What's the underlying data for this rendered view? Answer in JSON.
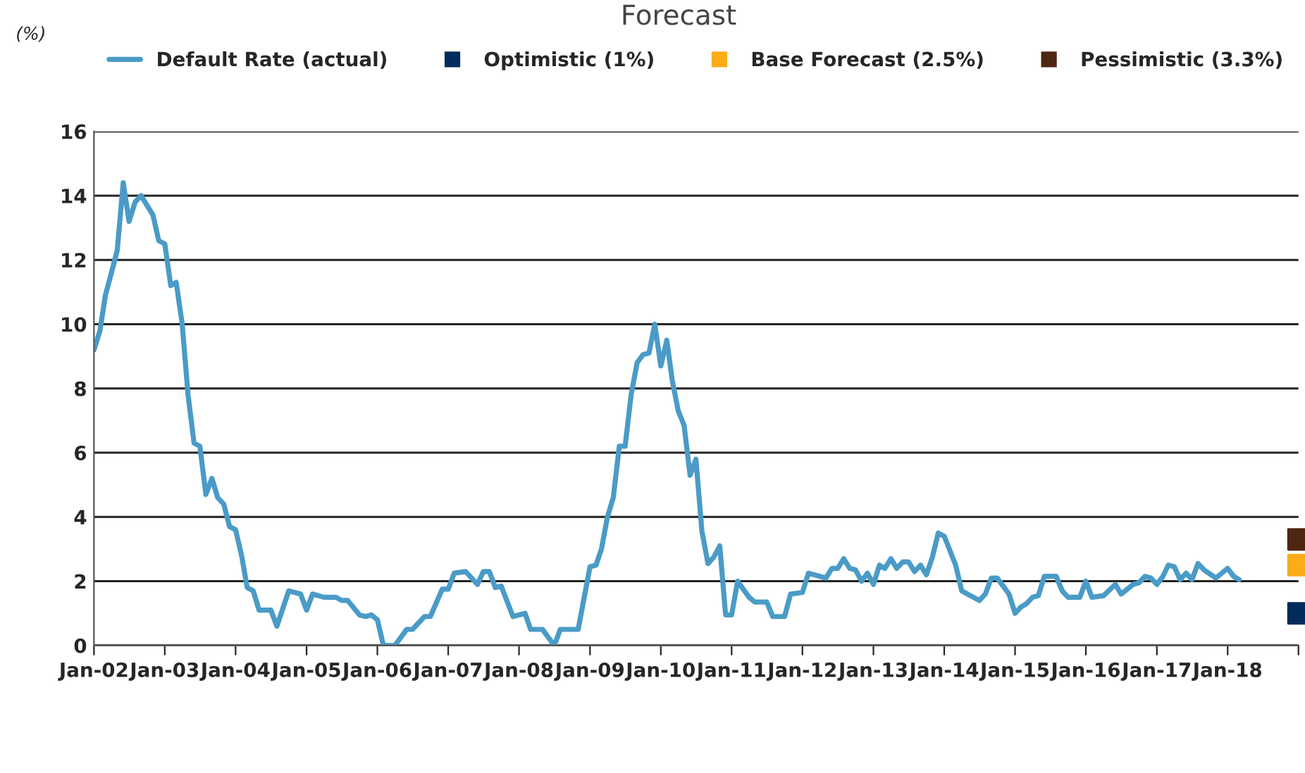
{
  "chart_data": {
    "type": "line",
    "title": "Forecast",
    "ylabel": "(%)",
    "xlim": [
      "2002-01",
      "2019-01"
    ],
    "ylim": [
      0,
      16
    ],
    "yticks": [
      0,
      2,
      4,
      6,
      8,
      10,
      12,
      14,
      16
    ],
    "xticks": [
      {
        "value": "2002-01",
        "label": "Jan-02"
      },
      {
        "value": "2003-01",
        "label": "Jan-03"
      },
      {
        "value": "2004-01",
        "label": "Jan-04"
      },
      {
        "value": "2005-01",
        "label": "Jan-05"
      },
      {
        "value": "2006-01",
        "label": "Jan-06"
      },
      {
        "value": "2007-01",
        "label": "Jan-07"
      },
      {
        "value": "2008-01",
        "label": "Jan-08"
      },
      {
        "value": "2009-01",
        "label": "Jan-09"
      },
      {
        "value": "2010-01",
        "label": "Jan-10"
      },
      {
        "value": "2011-01",
        "label": "Jan-11"
      },
      {
        "value": "2012-01",
        "label": "Jan-12"
      },
      {
        "value": "2013-01",
        "label": "Jan-13"
      },
      {
        "value": "2014-01",
        "label": "Jan-14"
      },
      {
        "value": "2015-01",
        "label": "Jan-15"
      },
      {
        "value": "2016-01",
        "label": "Jan-16"
      },
      {
        "value": "2017-01",
        "label": "Jan-17"
      },
      {
        "value": "2018-01",
        "label": "Jan-18"
      },
      {
        "value": "2019-01",
        "label": null
      }
    ],
    "grid": "y",
    "legend": "top",
    "marker": "none",
    "line_style": "solid",
    "series": [
      {
        "name": "Default Rate (actual)",
        "color": "#4a9bc7",
        "x": [
          "2002-01",
          "2002-02",
          "2002-03",
          "2002-04",
          "2002-05",
          "2002-06",
          "2002-07",
          "2002-08",
          "2002-09",
          "2002-11",
          "2002-12",
          "2003-01",
          "2003-02",
          "2003-03",
          "2003-04",
          "2003-05",
          "2003-06",
          "2003-07",
          "2003-08",
          "2003-09",
          "2003-10",
          "2003-11",
          "2003-12",
          "2004-01",
          "2004-02",
          "2004-03",
          "2004-04",
          "2004-05",
          "2004-07",
          "2004-08",
          "2004-10",
          "2004-12",
          "2005-01",
          "2005-02",
          "2005-04",
          "2005-06",
          "2005-07",
          "2005-08",
          "2005-10",
          "2005-11",
          "2005-12",
          "2006-01",
          "2006-02",
          "2006-04",
          "2006-06",
          "2006-07",
          "2006-09",
          "2006-10",
          "2006-12",
          "2007-01",
          "2007-02",
          "2007-04",
          "2007-06",
          "2007-07",
          "2007-08",
          "2007-09",
          "2007-10",
          "2007-12",
          "2008-02",
          "2008-03",
          "2008-05",
          "2008-07",
          "2008-08",
          "2008-11",
          "2009-01",
          "2009-02",
          "2009-03",
          "2009-04",
          "2009-05",
          "2009-06",
          "2009-07",
          "2009-08",
          "2009-09",
          "2009-10",
          "2009-11",
          "2009-12",
          "2010-01",
          "2010-02",
          "2010-03",
          "2010-04",
          "2010-05",
          "2010-06",
          "2010-07",
          "2010-08",
          "2010-09",
          "2010-10",
          "2010-11",
          "2010-12",
          "2011-01",
          "2011-02",
          "2011-04",
          "2011-05",
          "2011-07",
          "2011-08",
          "2011-10",
          "2011-11",
          "2012-01",
          "2012-02",
          "2012-04",
          "2012-05",
          "2012-06",
          "2012-07",
          "2012-08",
          "2012-09",
          "2012-10",
          "2012-11",
          "2012-12",
          "2013-01",
          "2013-02",
          "2013-03",
          "2013-04",
          "2013-05",
          "2013-06",
          "2013-07",
          "2013-08",
          "2013-09",
          "2013-10",
          "2013-11",
          "2013-12",
          "2014-01",
          "2014-03",
          "2014-04",
          "2014-05",
          "2014-07",
          "2014-08",
          "2014-09",
          "2014-10",
          "2014-12",
          "2015-01",
          "2015-02",
          "2015-03",
          "2015-04",
          "2015-05",
          "2015-06",
          "2015-08",
          "2015-09",
          "2015-10",
          "2015-12",
          "2016-01",
          "2016-02",
          "2016-04",
          "2016-06",
          "2016-07",
          "2016-09",
          "2016-10",
          "2016-11",
          "2016-12",
          "2017-01",
          "2017-02",
          "2017-03",
          "2017-04",
          "2017-05",
          "2017-06",
          "2017-07",
          "2017-08",
          "2017-09",
          "2017-11",
          "2018-01",
          "2018-02",
          "2018-03"
        ],
        "values": [
          9.2,
          9.8,
          10.9,
          11.6,
          12.3,
          14.4,
          13.2,
          13.8,
          14.0,
          13.4,
          12.6,
          12.5,
          11.2,
          11.3,
          10.0,
          7.8,
          6.3,
          6.2,
          4.7,
          5.2,
          4.6,
          4.4,
          3.7,
          3.6,
          2.8,
          1.8,
          1.7,
          1.1,
          1.1,
          0.6,
          1.7,
          1.6,
          1.1,
          1.6,
          1.5,
          1.5,
          1.4,
          1.4,
          0.95,
          0.9,
          0.95,
          0.8,
          0,
          0,
          0.5,
          0.5,
          0.9,
          0.9,
          1.75,
          1.75,
          2.25,
          2.3,
          1.9,
          2.3,
          2.3,
          1.8,
          1.85,
          0.9,
          1.0,
          0.5,
          0.5,
          0,
          0.5,
          0.5,
          2.45,
          2.5,
          3.0,
          4.0,
          4.6,
          6.2,
          6.2,
          7.8,
          8.8,
          9.05,
          9.1,
          10.0,
          8.7,
          9.5,
          8.25,
          7.3,
          6.85,
          5.3,
          5.8,
          3.55,
          2.55,
          2.75,
          3.1,
          0.95,
          0.95,
          2.0,
          1.5,
          1.35,
          1.35,
          0.9,
          0.9,
          1.6,
          1.65,
          2.25,
          2.15,
          2.1,
          2.4,
          2.4,
          2.7,
          2.4,
          2.35,
          2.0,
          2.25,
          1.9,
          2.5,
          2.4,
          2.7,
          2.4,
          2.6,
          2.6,
          2.3,
          2.5,
          2.2,
          2.75,
          3.5,
          3.4,
          2.5,
          1.7,
          1.6,
          1.4,
          1.6,
          2.1,
          2.1,
          1.6,
          1.0,
          1.2,
          1.3,
          1.5,
          1.55,
          2.15,
          2.15,
          1.7,
          1.5,
          1.5,
          2.0,
          1.5,
          1.55,
          1.9,
          1.6,
          1.9,
          1.95,
          2.15,
          2.1,
          1.9,
          2.15,
          2.5,
          2.45,
          2.05,
          2.25,
          2.05,
          2.55,
          2.35,
          2.1,
          2.4,
          2.15,
          2.05
        ]
      },
      {
        "name": "Optimistic (1%)",
        "color": "#002b5c",
        "type": "scatter",
        "marker": "square",
        "x": [
          "2019-01"
        ],
        "values": [
          1.0
        ]
      },
      {
        "name": "Base Forecast (2.5%)",
        "color": "#fbac18",
        "type": "scatter",
        "marker": "square",
        "x": [
          "2019-01"
        ],
        "values": [
          2.5
        ]
      },
      {
        "name": "Pessimistic (3.3%)",
        "color": "#4e2612",
        "type": "scatter",
        "marker": "square",
        "x": [
          "2019-01"
        ],
        "values": [
          3.3
        ]
      }
    ]
  }
}
